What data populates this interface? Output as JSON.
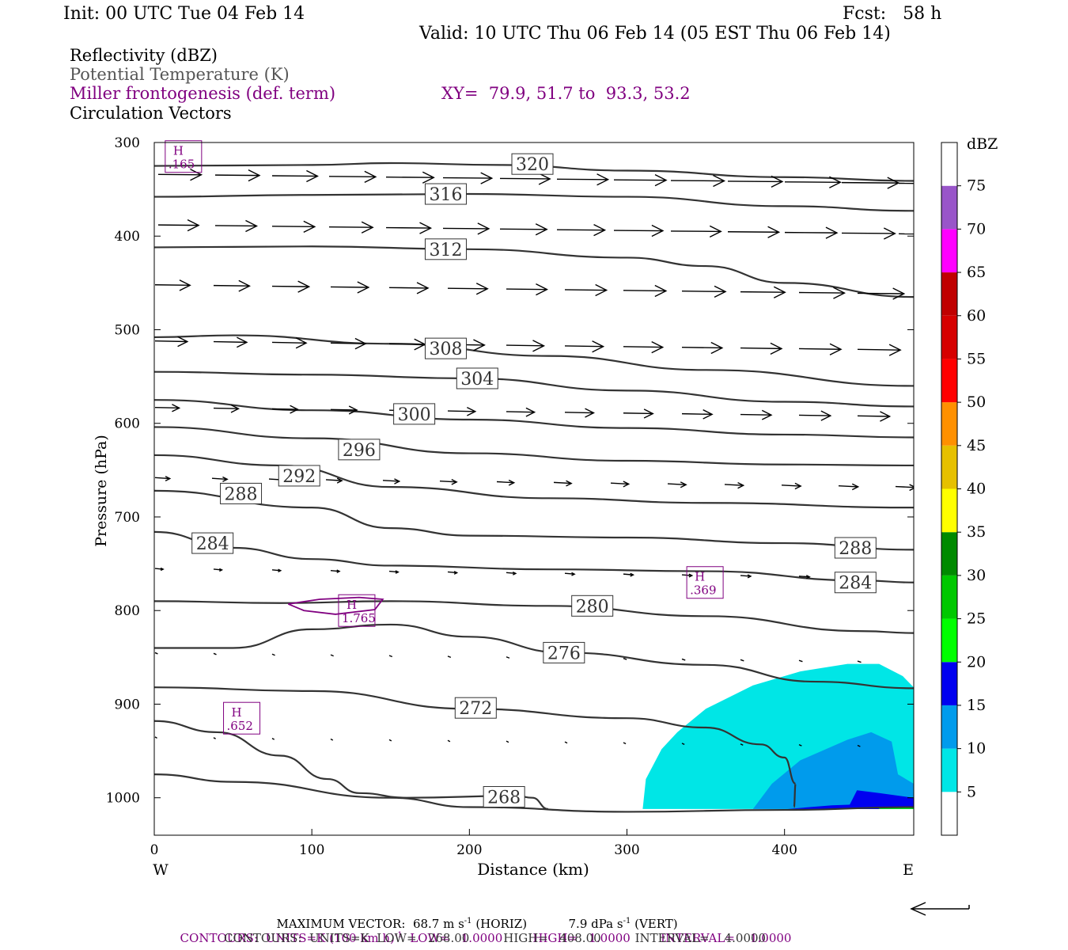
{
  "header": {
    "init": "Init: 00 UTC Tue 04 Feb 14",
    "fcst": "Fcst:   58 h",
    "valid": "Valid: 10 UTC Thu 06 Feb 14 (05 EST Thu 06 Feb 14)"
  },
  "fields": {
    "reflectivity": "Reflectivity (dBZ)",
    "theta": "Potential Temperature (K)",
    "frontogenesis": "Miller frontogenesis (def. term)",
    "xy": "XY=  79.9, 51.7 to  93.3, 53.2",
    "vectors": "Circulation Vectors"
  },
  "footer": {
    "max_vector_label": "MAXIMUM VECTOR:",
    "max_vector_horiz": "68.7 m s",
    "horiz_suffix": "(HORIZ)",
    "max_vector_vert": "7.9 dPa s",
    "vert_suffix": "(VERT)",
    "exp": "-1",
    "contours1_a": "CONTOURS:  UNITS=K (100 km h)",
    "contours1_b": "LOW=   1.0000        HIGH=   1.0000        INTERVAL=    1.0000",
    "contours2": "CONTOURS:  UNITS=K  LOW=   268.00         HIGH=   408.00         INTERVAL=    4.0000"
  },
  "chart_data": {
    "type": "cross-section",
    "ylabel": "Pressure (hPa)",
    "xlabel": "Distance (km)",
    "xlim": [
      0,
      482
    ],
    "ylim": [
      1040,
      300
    ],
    "x_ticks": [
      0,
      100,
      200,
      300,
      400
    ],
    "y_ticks": [
      300,
      400,
      500,
      600,
      700,
      800,
      900,
      1000
    ],
    "west_label": "W",
    "east_label": "E",
    "colorbar": {
      "unit": "dBZ",
      "levels": [
        5,
        10,
        15,
        20,
        25,
        30,
        35,
        40,
        45,
        50,
        55,
        60,
        65,
        70,
        75
      ],
      "colors": [
        "#ffffff",
        "#00e6e6",
        "#009bec",
        "#0000f0",
        "#00ff00",
        "#00c800",
        "#008a00",
        "#ffff00",
        "#e6c000",
        "#ff9000",
        "#ff0000",
        "#d60000",
        "#c00000",
        "#ff00ff",
        "#9955c9",
        "#ffffff"
      ]
    },
    "theta_contours": [
      {
        "label": "320",
        "points": [
          [
            0,
            325
          ],
          [
            100,
            324
          ],
          [
            150,
            322
          ],
          [
            220,
            324
          ],
          [
            300,
            330
          ],
          [
            400,
            337
          ],
          [
            482,
            341
          ]
        ],
        "label_at": [
          240,
          323
        ]
      },
      {
        "label": "316",
        "points": [
          [
            0,
            358
          ],
          [
            100,
            356
          ],
          [
            200,
            355
          ],
          [
            300,
            358
          ],
          [
            400,
            368
          ],
          [
            482,
            373
          ]
        ],
        "label_at": [
          185,
          355
        ]
      },
      {
        "label": "312",
        "points": [
          [
            0,
            412
          ],
          [
            100,
            411
          ],
          [
            200,
            414
          ],
          [
            300,
            423
          ],
          [
            350,
            432
          ],
          [
            400,
            450
          ],
          [
            482,
            465
          ]
        ],
        "label_at": [
          185,
          414
        ]
      },
      {
        "label": "308",
        "points": [
          [
            0,
            508
          ],
          [
            50,
            506
          ],
          [
            150,
            515
          ],
          [
            250,
            528
          ],
          [
            350,
            543
          ],
          [
            482,
            560
          ]
        ],
        "label_at": [
          185,
          520
        ]
      },
      {
        "label": "304",
        "points": [
          [
            0,
            545
          ],
          [
            100,
            548
          ],
          [
            200,
            552
          ],
          [
            300,
            565
          ],
          [
            400,
            577
          ],
          [
            482,
            582
          ]
        ],
        "label_at": [
          205,
          552
        ]
      },
      {
        "label": "300",
        "points": [
          [
            0,
            575
          ],
          [
            100,
            586
          ],
          [
            200,
            596
          ],
          [
            300,
            605
          ],
          [
            400,
            612
          ],
          [
            482,
            615
          ]
        ],
        "label_at": [
          165,
          590
        ]
      },
      {
        "label": "296",
        "points": [
          [
            0,
            604
          ],
          [
            100,
            616
          ],
          [
            200,
            632
          ],
          [
            300,
            640
          ],
          [
            400,
            644
          ],
          [
            482,
            645
          ]
        ],
        "label_at": [
          130,
          628
        ]
      },
      {
        "label": "292",
        "points": [
          [
            0,
            634
          ],
          [
            80,
            645
          ],
          [
            150,
            668
          ],
          [
            250,
            680
          ],
          [
            350,
            685
          ],
          [
            482,
            690
          ]
        ],
        "label_at": [
          92,
          656
        ]
      },
      {
        "label": "288",
        "points": [
          [
            0,
            672
          ],
          [
            100,
            690
          ],
          [
            150,
            712
          ],
          [
            200,
            720
          ],
          [
            300,
            722
          ],
          [
            400,
            728
          ],
          [
            482,
            735
          ]
        ],
        "label_at": [
          55,
          675
        ],
        "label2_at": [
          445,
          733
        ]
      },
      {
        "label": "284",
        "points": [
          [
            0,
            716
          ],
          [
            50,
            733
          ],
          [
            100,
            745
          ],
          [
            150,
            752
          ],
          [
            250,
            756
          ],
          [
            350,
            758
          ],
          [
            450,
            768
          ],
          [
            482,
            770
          ]
        ],
        "label_at": [
          37,
          728
        ],
        "label2_at": [
          445,
          770
        ]
      },
      {
        "label": "280",
        "points": [
          [
            0,
            790
          ],
          [
            80,
            792
          ],
          [
            150,
            790
          ],
          [
            250,
            795
          ],
          [
            350,
            806
          ],
          [
            450,
            822
          ],
          [
            482,
            824
          ]
        ],
        "label_at": [
          278,
          795
        ]
      },
      {
        "label": "276",
        "points": [
          [
            0,
            840
          ],
          [
            50,
            840
          ],
          [
            100,
            820
          ],
          [
            150,
            815
          ],
          [
            200,
            828
          ],
          [
            260,
            845
          ],
          [
            350,
            858
          ],
          [
            420,
            876
          ],
          [
            482,
            883
          ]
        ],
        "label_at": [
          260,
          845
        ]
      },
      {
        "label": "272",
        "points": [
          [
            0,
            882
          ],
          [
            100,
            886
          ],
          [
            200,
            905
          ],
          [
            300,
            915
          ],
          [
            350,
            925
          ],
          [
            385,
            943
          ],
          [
            400,
            957
          ],
          [
            407,
            985
          ],
          [
            406,
            1010
          ]
        ],
        "label_at": [
          204,
          904
        ]
      },
      {
        "label": "268",
        "points": [
          [
            0,
            975
          ],
          [
            50,
            983
          ],
          [
            150,
            1000
          ],
          [
            200,
            1010
          ],
          [
            300,
            1015
          ],
          [
            400,
            1013
          ],
          [
            482,
            1010
          ]
        ],
        "label_at": [
          222,
          999
        ]
      },
      {
        "label": "",
        "points": [
          [
            0,
            918
          ],
          [
            40,
            930
          ],
          [
            80,
            955
          ],
          [
            110,
            980
          ],
          [
            130,
            995
          ],
          [
            160,
            1000
          ],
          [
            230,
            998
          ],
          [
            240,
            1000
          ],
          [
            250,
            1012
          ]
        ]
      }
    ],
    "frontogenesis_maxima": [
      {
        "label": "H",
        "value": ".165",
        "x": 18,
        "p": 315
      },
      {
        "label": "H",
        "value": "1.765",
        "x": 128,
        "p": 800
      },
      {
        "label": "H",
        "value": ".369",
        "x": 349,
        "p": 770
      },
      {
        "label": "H",
        "value": ".652",
        "x": 55,
        "p": 915
      }
    ]
  }
}
